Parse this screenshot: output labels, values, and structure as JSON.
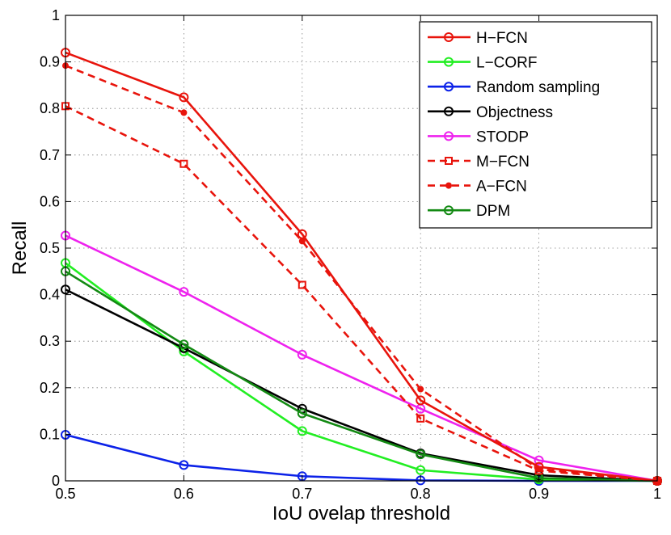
{
  "chart_data": {
    "type": "line",
    "title": "",
    "xlabel": "IoU ovelap threshold",
    "ylabel": "Recall",
    "xlim": [
      0.5,
      1
    ],
    "ylim": [
      0,
      1
    ],
    "x_ticks": [
      "0.5",
      "0.6",
      "0.7",
      "0.8",
      "0.9",
      "1"
    ],
    "y_ticks": [
      "0",
      "0.1",
      "0.2",
      "0.3",
      "0.4",
      "0.5",
      "0.6",
      "0.7",
      "0.8",
      "0.9",
      "1"
    ],
    "grid": true,
    "legend_position": "top-right",
    "x": [
      0.5,
      0.6,
      0.7,
      0.8,
      0.9,
      1.0
    ],
    "series": [
      {
        "name": "H−FCN",
        "color": "#e8140c",
        "dash": "solid",
        "marker": "circle",
        "values": [
          0.92,
          0.824,
          0.53,
          0.173,
          0.03,
          0
        ]
      },
      {
        "name": "L−CORF",
        "color": "#22ee22",
        "dash": "solid",
        "marker": "circle",
        "values": [
          0.468,
          0.278,
          0.107,
          0.023,
          0.003,
          0
        ]
      },
      {
        "name": "Random sampling",
        "color": "#0c22e8",
        "dash": "solid",
        "marker": "circle",
        "values": [
          0.099,
          0.034,
          0.01,
          0.001,
          0,
          0
        ]
      },
      {
        "name": "Objectness",
        "color": "#000000",
        "dash": "solid",
        "marker": "circle",
        "values": [
          0.411,
          0.285,
          0.155,
          0.059,
          0.012,
          0
        ]
      },
      {
        "name": "STODP",
        "color": "#ee22ee",
        "dash": "solid",
        "marker": "circle",
        "values": [
          0.527,
          0.406,
          0.271,
          0.155,
          0.044,
          0
        ]
      },
      {
        "name": "M−FCN",
        "color": "#e8140c",
        "dash": "dashed",
        "marker": "square",
        "values": [
          0.805,
          0.681,
          0.421,
          0.134,
          0.022,
          0
        ]
      },
      {
        "name": "A−FCN",
        "color": "#e8140c",
        "dash": "dashed",
        "marker": "dot",
        "values": [
          0.892,
          0.791,
          0.515,
          0.197,
          0.025,
          0
        ]
      },
      {
        "name": "DPM",
        "color": "#138a13",
        "dash": "solid",
        "marker": "circle",
        "values": [
          0.45,
          0.293,
          0.145,
          0.057,
          0.006,
          0
        ]
      }
    ]
  }
}
